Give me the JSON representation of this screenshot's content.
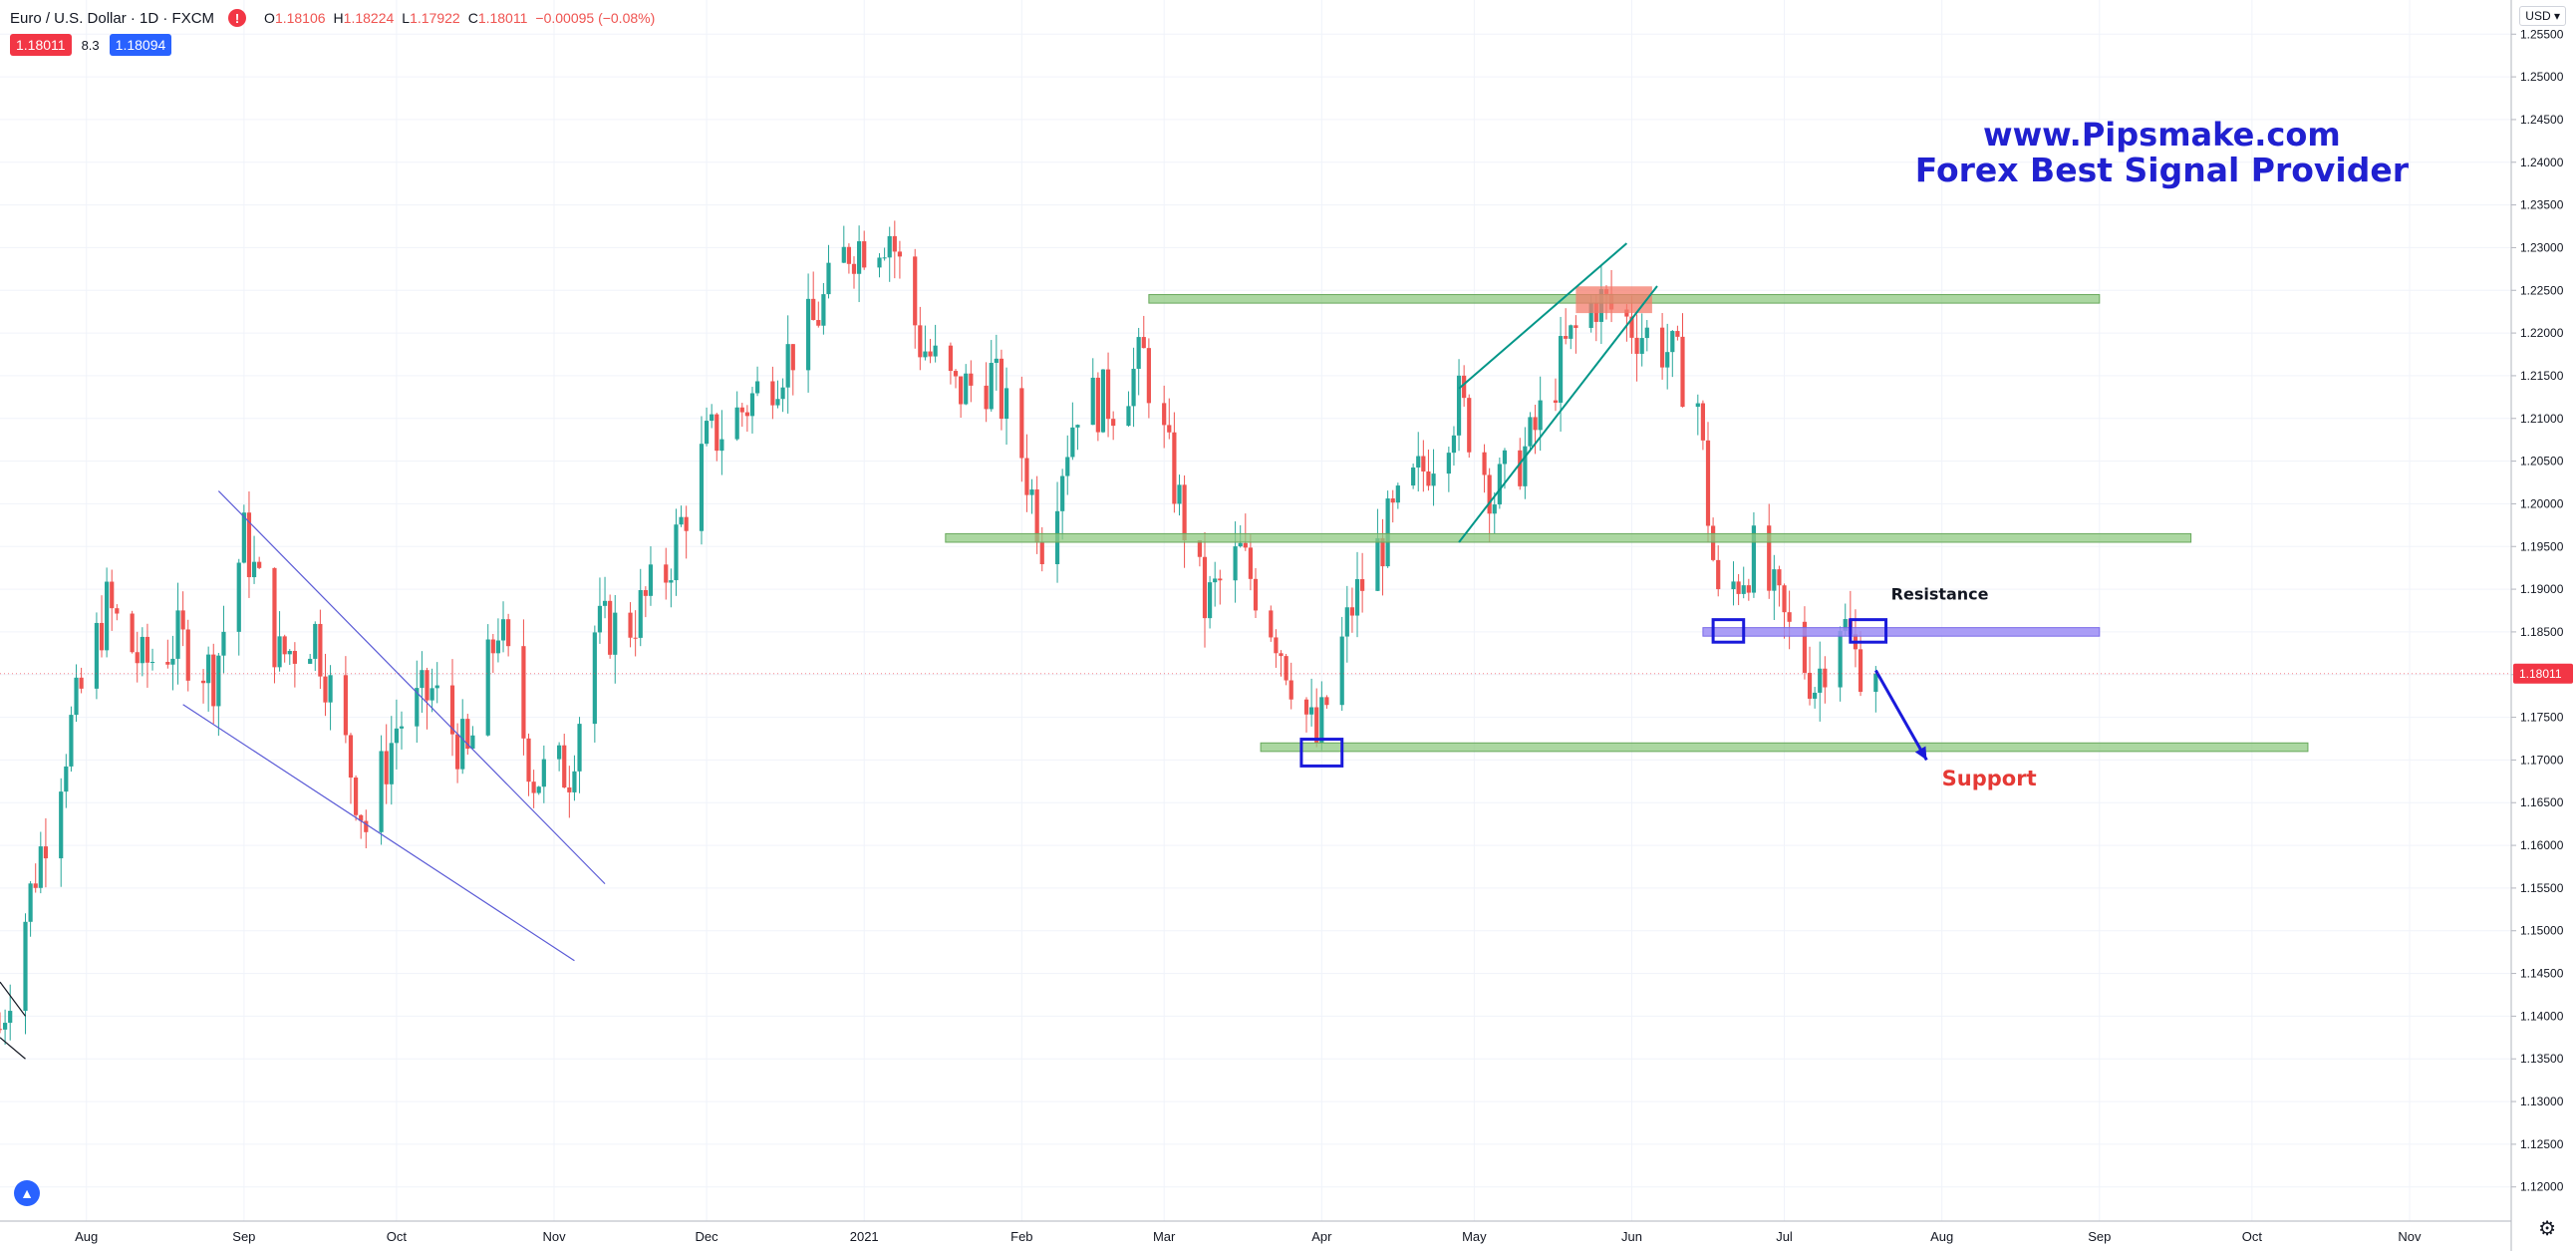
{
  "header": {
    "symbol": "Euro / U.S. Dollar · 1D · FXCM",
    "alert_glyph": "!",
    "ohlc": {
      "o_label": "O",
      "o": "1.18106",
      "h_label": "H",
      "h": "1.18224",
      "l_label": "L",
      "l": "1.17922",
      "c_label": "C",
      "c": "1.18011",
      "change": "−0.00095 (−0.08%)"
    }
  },
  "quote": {
    "sell": "1.18011",
    "spread": "8.3",
    "buy": "1.18094"
  },
  "watermark": {
    "line1": "www.Pipsmake.com",
    "line2": "Forex Best Signal Provider"
  },
  "currency_button": "USD ▾",
  "colors": {
    "up": "#26a69a",
    "down": "#ef5350",
    "zone": "#8fc982",
    "zone_edge": "#68a95c",
    "resistance_zone": "#9b8cf5",
    "trendline": "#5b5bd6",
    "channel": "#009688",
    "annotation_blue": "#1a1adb",
    "support_text": "#e53935",
    "price_tag": "#f23645"
  },
  "chart_data": {
    "type": "candlestick",
    "symbol": "EURUSD",
    "timeframe": "1D",
    "xlabel": "",
    "ylabel": "",
    "y_range": [
      1.116,
      1.259
    ],
    "x_range": [
      "2020-07-15",
      "2021-11-21"
    ],
    "grid": true,
    "current_price": 1.18011,
    "y_ticks": [
      "1.12000",
      "1.12500",
      "1.13000",
      "1.13500",
      "1.14000",
      "1.14500",
      "1.15000",
      "1.15500",
      "1.16000",
      "1.16500",
      "1.17000",
      "1.17500",
      "1.18000",
      "1.18500",
      "1.19000",
      "1.19500",
      "1.20000",
      "1.20500",
      "1.21000",
      "1.21500",
      "1.22000",
      "1.22500",
      "1.23000",
      "1.23500",
      "1.24000",
      "1.24500",
      "1.25000",
      "1.25500"
    ],
    "x_ticks": [
      {
        "label": "Aug",
        "date": "2020-08-01"
      },
      {
        "label": "Sep",
        "date": "2020-09-01"
      },
      {
        "label": "Oct",
        "date": "2020-10-01"
      },
      {
        "label": "Nov",
        "date": "2020-11-01"
      },
      {
        "label": "Dec",
        "date": "2020-12-01"
      },
      {
        "label": "2021",
        "date": "2021-01-01"
      },
      {
        "label": "Feb",
        "date": "2021-02-01"
      },
      {
        "label": "Mar",
        "date": "2021-03-01"
      },
      {
        "label": "Apr",
        "date": "2021-04-01"
      },
      {
        "label": "May",
        "date": "2021-05-01"
      },
      {
        "label": "Jun",
        "date": "2021-06-01"
      },
      {
        "label": "Jul",
        "date": "2021-07-01"
      },
      {
        "label": "Aug",
        "date": "2021-08-01"
      },
      {
        "label": "Sep",
        "date": "2021-09-01"
      },
      {
        "label": "Oct",
        "date": "2021-10-01"
      },
      {
        "label": "Nov",
        "date": "2021-11-01"
      }
    ],
    "price_path": [
      [
        "2020-07-15",
        1.1385
      ],
      [
        "2020-07-22",
        1.157
      ],
      [
        "2020-07-29",
        1.174
      ],
      [
        "2020-08-05",
        1.188
      ],
      [
        "2020-08-12",
        1.181
      ],
      [
        "2020-08-19",
        1.184
      ],
      [
        "2020-08-26",
        1.18
      ],
      [
        "2020-09-01",
        1.196
      ],
      [
        "2020-09-08",
        1.182
      ],
      [
        "2020-09-15",
        1.185
      ],
      [
        "2020-09-22",
        1.169
      ],
      [
        "2020-09-25",
        1.162
      ],
      [
        "2020-10-01",
        1.174
      ],
      [
        "2020-10-08",
        1.178
      ],
      [
        "2020-10-15",
        1.17
      ],
      [
        "2020-10-21",
        1.186
      ],
      [
        "2020-10-28",
        1.168
      ],
      [
        "2020-11-04",
        1.169
      ],
      [
        "2020-11-09",
        1.185
      ],
      [
        "2020-11-16",
        1.186
      ],
      [
        "2020-11-23",
        1.192
      ],
      [
        "2020-12-01",
        1.207
      ],
      [
        "2020-12-08",
        1.211
      ],
      [
        "2020-12-15",
        1.216
      ],
      [
        "2020-12-22",
        1.221
      ],
      [
        "2020-12-29",
        1.23
      ],
      [
        "2021-01-06",
        1.232
      ],
      [
        "2021-01-12",
        1.219
      ],
      [
        "2021-01-19",
        1.213
      ],
      [
        "2021-01-26",
        1.215
      ],
      [
        "2021-02-01",
        1.206
      ],
      [
        "2021-02-05",
        1.196
      ],
      [
        "2021-02-12",
        1.212
      ],
      [
        "2021-02-19",
        1.212
      ],
      [
        "2021-02-25",
        1.217
      ],
      [
        "2021-03-04",
        1.2
      ],
      [
        "2021-03-09",
        1.188
      ],
      [
        "2021-03-16",
        1.194
      ],
      [
        "2021-03-23",
        1.185
      ],
      [
        "2021-03-31",
        1.172
      ],
      [
        "2021-04-07",
        1.188
      ],
      [
        "2021-04-14",
        1.197
      ],
      [
        "2021-04-21",
        1.204
      ],
      [
        "2021-04-28",
        1.212
      ],
      [
        "2021-05-05",
        1.201
      ],
      [
        "2021-05-12",
        1.207
      ],
      [
        "2021-05-19",
        1.218
      ],
      [
        "2021-05-25",
        1.224
      ],
      [
        "2021-06-01",
        1.221
      ],
      [
        "2021-06-08",
        1.218
      ],
      [
        "2021-06-14",
        1.212
      ],
      [
        "2021-06-16",
        1.199
      ],
      [
        "2021-06-18",
        1.188
      ],
      [
        "2021-06-25",
        1.194
      ],
      [
        "2021-07-01",
        1.186
      ],
      [
        "2021-07-07",
        1.179
      ],
      [
        "2021-07-12",
        1.187
      ],
      [
        "2021-07-15",
        1.182
      ],
      [
        "2021-07-19",
        1.1801
      ]
    ],
    "horizontal_zones": [
      {
        "from": "2021-02-26",
        "to": "2021-09-01",
        "y_low": 1.2235,
        "y_high": 1.2245
      },
      {
        "from": "2021-01-17",
        "to": "2021-09-19",
        "y_low": 1.1955,
        "y_high": 1.1965
      },
      {
        "from": "2021-06-15",
        "to": "2021-09-01",
        "y_low": 1.1845,
        "y_high": 1.1855,
        "label": "Resistance"
      },
      {
        "from": "2021-03-20",
        "to": "2021-10-12",
        "y_low": 1.171,
        "y_high": 1.172,
        "label": "Support"
      }
    ],
    "highlight_boxes": [
      {
        "from": "2021-03-28",
        "to": "2021-04-05",
        "y_low": 1.17,
        "y_high": 1.1715
      },
      {
        "from": "2021-06-17",
        "to": "2021-06-23",
        "y_low": 1.1845,
        "y_high": 1.1855
      },
      {
        "from": "2021-07-14",
        "to": "2021-07-21",
        "y_low": 1.1845,
        "y_high": 1.1855
      },
      {
        "from": "2021-05-21",
        "to": "2021-06-05",
        "y_low": 1.2235,
        "y_high": 1.225
      }
    ],
    "trendlines": [
      {
        "kind": "wedge",
        "from": [
          "2020-08-27",
          1.2015
        ],
        "to": [
          "2020-11-11",
          1.1555
        ]
      },
      {
        "kind": "wedge",
        "from": [
          "2020-08-20",
          1.1765
        ],
        "to": [
          "2020-11-05",
          1.1465
        ]
      },
      {
        "kind": "channel",
        "from": [
          "2021-04-28",
          1.2135
        ],
        "to": [
          "2021-05-31",
          1.2305
        ]
      },
      {
        "kind": "channel",
        "from": [
          "2021-04-28",
          1.1955
        ],
        "to": [
          "2021-06-06",
          1.2255
        ]
      },
      {
        "kind": "marker",
        "from": [
          "2020-07-15",
          1.144
        ],
        "to": [
          "2020-07-20",
          1.14
        ]
      },
      {
        "kind": "marker",
        "from": [
          "2020-07-15",
          1.1375
        ],
        "to": [
          "2020-07-20",
          1.135
        ]
      }
    ],
    "arrow": {
      "from": [
        "2021-07-19",
        1.1805
      ],
      "to": [
        "2021-07-29",
        1.17
      ]
    },
    "annotations": [
      {
        "text": "Resistance",
        "date": "2021-07-22",
        "y": 1.1888
      },
      {
        "text": "Support",
        "date": "2021-08-01",
        "y": 1.167
      }
    ]
  }
}
